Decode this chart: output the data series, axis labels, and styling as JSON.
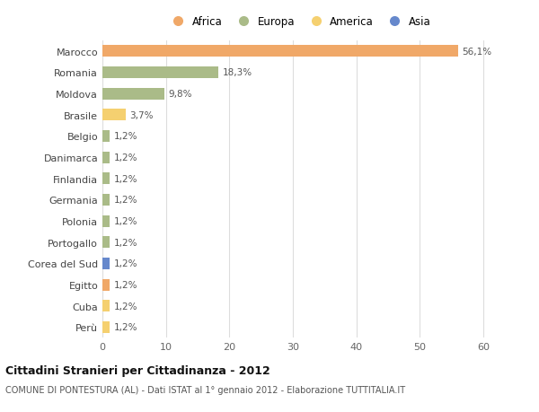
{
  "countries": [
    "Marocco",
    "Romania",
    "Moldova",
    "Brasile",
    "Belgio",
    "Danimarca",
    "Finlandia",
    "Germania",
    "Polonia",
    "Portogallo",
    "Corea del Sud",
    "Egitto",
    "Cuba",
    "Perù"
  ],
  "values": [
    56.1,
    18.3,
    9.8,
    3.7,
    1.2,
    1.2,
    1.2,
    1.2,
    1.2,
    1.2,
    1.2,
    1.2,
    1.2,
    1.2
  ],
  "labels": [
    "56,1%",
    "18,3%",
    "9,8%",
    "3,7%",
    "1,2%",
    "1,2%",
    "1,2%",
    "1,2%",
    "1,2%",
    "1,2%",
    "1,2%",
    "1,2%",
    "1,2%",
    "1,2%"
  ],
  "continents": [
    "Africa",
    "Europa",
    "Europa",
    "America",
    "Europa",
    "Europa",
    "Europa",
    "Europa",
    "Europa",
    "Europa",
    "Asia",
    "Africa",
    "America",
    "America"
  ],
  "colors": {
    "Africa": "#F0A868",
    "Europa": "#AABB88",
    "America": "#F5D070",
    "Asia": "#6688CC"
  },
  "legend_order": [
    "Africa",
    "Europa",
    "America",
    "Asia"
  ],
  "title": "Cittadini Stranieri per Cittadinanza - 2012",
  "subtitle": "COMUNE DI PONTESTURA (AL) - Dati ISTAT al 1° gennaio 2012 - Elaborazione TUTTITALIA.IT",
  "xlim": [
    0,
    62
  ],
  "xticks": [
    0,
    10,
    20,
    30,
    40,
    50,
    60
  ],
  "background_color": "#ffffff",
  "grid_color": "#dddddd"
}
